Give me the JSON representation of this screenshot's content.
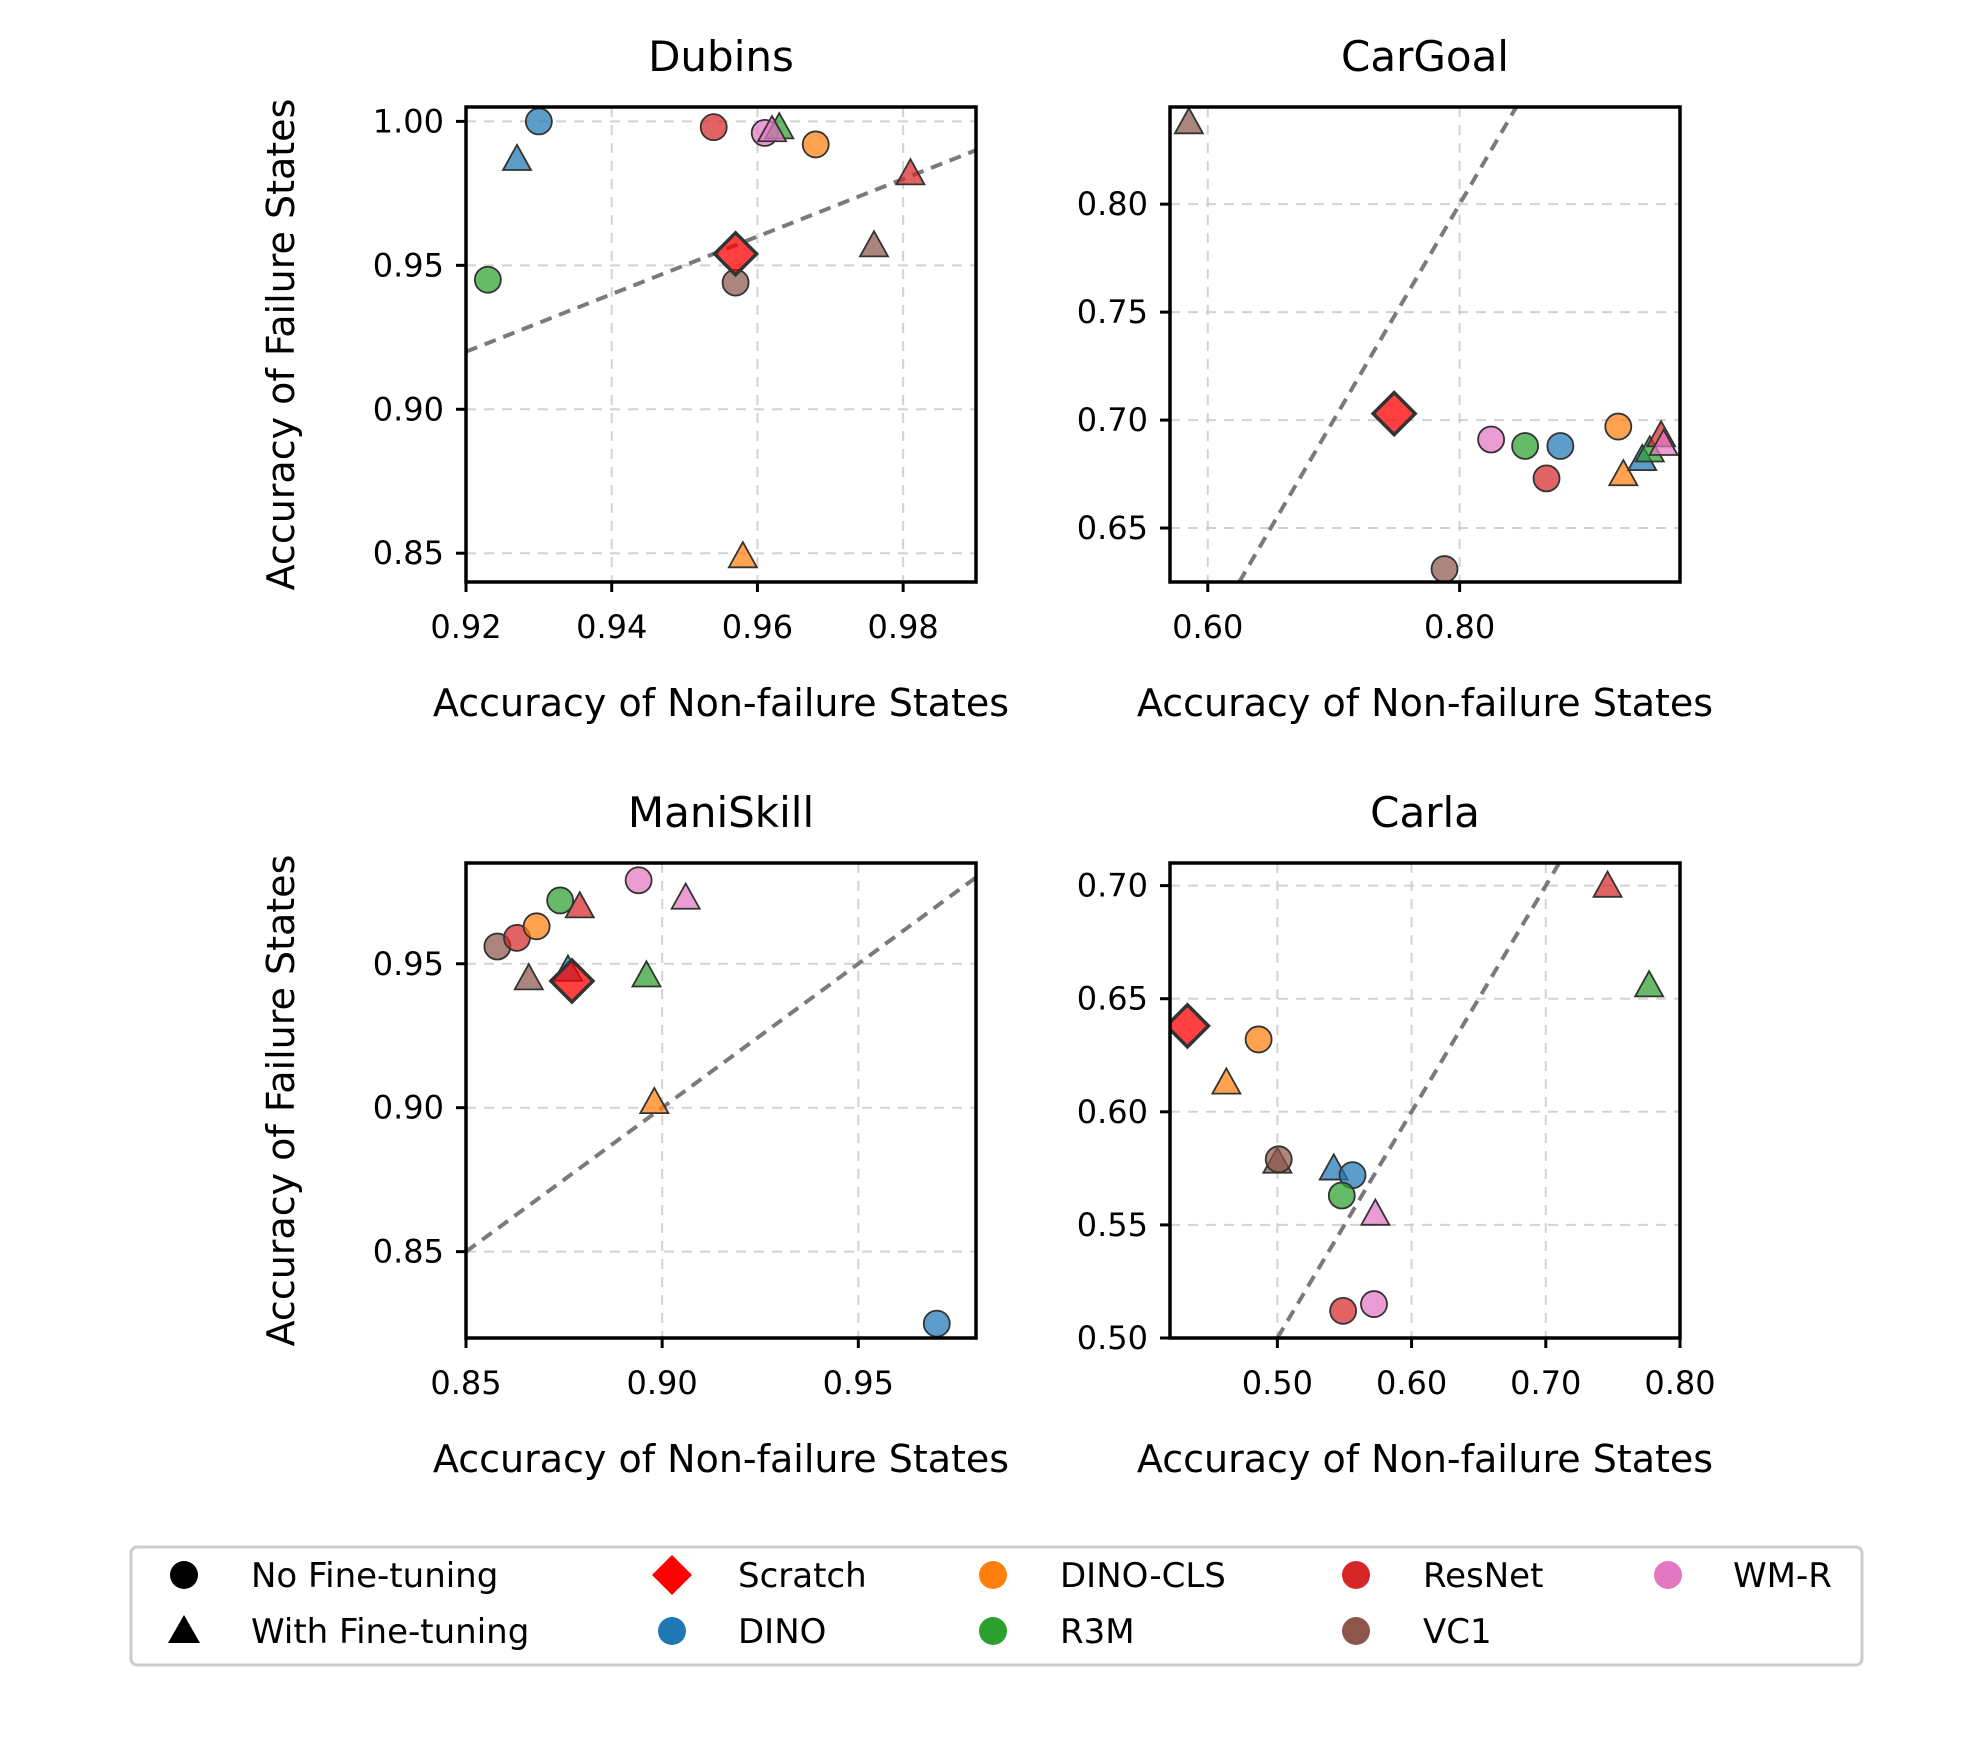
{
  "chart_data": [
    {
      "type": "scatter",
      "title": "Dubins",
      "xlabel": "Accuracy of Non-failure States",
      "ylabel": "Accuracy of Failure States",
      "xlim": [
        0.92,
        0.99
      ],
      "ylim": [
        0.84,
        1.005
      ],
      "xticks": [
        0.92,
        0.94,
        0.96,
        0.98
      ],
      "xtick_labels": [
        "0.92",
        "0.94",
        "0.96",
        "0.98"
      ],
      "yticks": [
        0.85,
        0.9,
        0.95,
        1.0
      ],
      "ytick_labels": [
        "0.85",
        "0.90",
        "0.95",
        "1.00"
      ],
      "reference_line": [
        [
          0.92,
          0.92
        ],
        [
          0.99,
          0.99
        ]
      ],
      "points": [
        {
          "model": "DINO",
          "finetuned": false,
          "x": 0.93,
          "y": 1.0
        },
        {
          "model": "DINO",
          "finetuned": true,
          "x": 0.927,
          "y": 0.987
        },
        {
          "model": "R3M",
          "finetuned": false,
          "x": 0.923,
          "y": 0.945
        },
        {
          "model": "ResNet",
          "finetuned": false,
          "x": 0.954,
          "y": 0.998
        },
        {
          "model": "WM-R",
          "finetuned": false,
          "x": 0.961,
          "y": 0.996
        },
        {
          "model": "R3M",
          "finetuned": true,
          "x": 0.963,
          "y": 0.998
        },
        {
          "model": "WM-R",
          "finetuned": true,
          "x": 0.962,
          "y": 0.997
        },
        {
          "model": "DINO-CLS",
          "finetuned": false,
          "x": 0.968,
          "y": 0.992
        },
        {
          "model": "ResNet",
          "finetuned": true,
          "x": 0.981,
          "y": 0.982
        },
        {
          "model": "VC1",
          "finetuned": true,
          "x": 0.976,
          "y": 0.957
        },
        {
          "model": "VC1",
          "finetuned": false,
          "x": 0.957,
          "y": 0.944
        },
        {
          "model": "DINO-CLS",
          "finetuned": true,
          "x": 0.958,
          "y": 0.849
        },
        {
          "model": "Scratch",
          "finetuned": null,
          "x": 0.957,
          "y": 0.954
        }
      ]
    },
    {
      "type": "scatter",
      "title": "CarGoal",
      "xlabel": "Accuracy of Non-failure States",
      "ylabel": "",
      "xlim": [
        0.57,
        0.975
      ],
      "ylim": [
        0.625,
        0.845
      ],
      "xticks": [
        0.6,
        0.8
      ],
      "xtick_labels": [
        "0.60",
        "0.80"
      ],
      "yticks": [
        0.65,
        0.7,
        0.75,
        0.8
      ],
      "ytick_labels": [
        "0.65",
        "0.70",
        "0.75",
        "0.80"
      ],
      "reference_line": [
        [
          0.625,
          0.625
        ],
        [
          0.845,
          0.845
        ]
      ],
      "points": [
        {
          "model": "VC1",
          "finetuned": true,
          "x": 0.585,
          "y": 0.838
        },
        {
          "model": "Scratch",
          "finetuned": null,
          "x": 0.748,
          "y": 0.703
        },
        {
          "model": "WM-R",
          "finetuned": false,
          "x": 0.825,
          "y": 0.691
        },
        {
          "model": "R3M",
          "finetuned": false,
          "x": 0.852,
          "y": 0.688
        },
        {
          "model": "DINO",
          "finetuned": false,
          "x": 0.88,
          "y": 0.688
        },
        {
          "model": "ResNet",
          "finetuned": false,
          "x": 0.869,
          "y": 0.673
        },
        {
          "model": "DINO-CLS",
          "finetuned": false,
          "x": 0.926,
          "y": 0.697
        },
        {
          "model": "DINO-CLS",
          "finetuned": true,
          "x": 0.93,
          "y": 0.675
        },
        {
          "model": "DINO",
          "finetuned": true,
          "x": 0.945,
          "y": 0.682
        },
        {
          "model": "R3M",
          "finetuned": true,
          "x": 0.951,
          "y": 0.686
        },
        {
          "model": "ResNet",
          "finetuned": true,
          "x": 0.96,
          "y": 0.693
        },
        {
          "model": "WM-R",
          "finetuned": true,
          "x": 0.962,
          "y": 0.689
        },
        {
          "model": "VC1",
          "finetuned": false,
          "x": 0.788,
          "y": 0.631
        }
      ]
    },
    {
      "type": "scatter",
      "title": "ManiSkill",
      "xlabel": "Accuracy of Non-failure States",
      "ylabel": "Accuracy of Failure States",
      "xlim": [
        0.85,
        0.98
      ],
      "ylim": [
        0.82,
        0.985
      ],
      "xticks": [
        0.85,
        0.9,
        0.95
      ],
      "xtick_labels": [
        "0.85",
        "0.90",
        "0.95"
      ],
      "yticks": [
        0.85,
        0.9,
        0.95
      ],
      "ytick_labels": [
        "0.85",
        "0.90",
        "0.95"
      ],
      "reference_line": [
        [
          0.85,
          0.85
        ],
        [
          0.98,
          0.98
        ]
      ],
      "points": [
        {
          "model": "VC1",
          "finetuned": false,
          "x": 0.858,
          "y": 0.956
        },
        {
          "model": "ResNet",
          "finetuned": false,
          "x": 0.863,
          "y": 0.959
        },
        {
          "model": "DINO-CLS",
          "finetuned": false,
          "x": 0.868,
          "y": 0.963
        },
        {
          "model": "R3M",
          "finetuned": false,
          "x": 0.874,
          "y": 0.972
        },
        {
          "model": "ResNet",
          "finetuned": true,
          "x": 0.879,
          "y": 0.97
        },
        {
          "model": "WM-R",
          "finetuned": false,
          "x": 0.894,
          "y": 0.979
        },
        {
          "model": "WM-R",
          "finetuned": true,
          "x": 0.906,
          "y": 0.973
        },
        {
          "model": "VC1",
          "finetuned": true,
          "x": 0.866,
          "y": 0.945
        },
        {
          "model": "DINO",
          "finetuned": true,
          "x": 0.876,
          "y": 0.948
        },
        {
          "model": "R3M",
          "finetuned": true,
          "x": 0.896,
          "y": 0.946
        },
        {
          "model": "DINO-CLS",
          "finetuned": true,
          "x": 0.898,
          "y": 0.902
        },
        {
          "model": "DINO",
          "finetuned": false,
          "x": 0.97,
          "y": 0.825
        },
        {
          "model": "Scratch",
          "finetuned": null,
          "x": 0.877,
          "y": 0.944
        }
      ]
    },
    {
      "type": "scatter",
      "title": "Carla",
      "xlabel": "Accuracy of Non-failure States",
      "ylabel": "",
      "xlim": [
        0.42,
        0.8
      ],
      "ylim": [
        0.5,
        0.71
      ],
      "xticks": [
        0.5,
        0.6,
        0.7,
        0.8
      ],
      "xtick_labels": [
        "0.50",
        "0.60",
        "0.70",
        "0.80"
      ],
      "yticks": [
        0.5,
        0.55,
        0.6,
        0.65,
        0.7
      ],
      "ytick_labels": [
        "0.50",
        "0.55",
        "0.60",
        "0.65",
        "0.70"
      ],
      "reference_line": [
        [
          0.5,
          0.5
        ],
        [
          0.71,
          0.71
        ]
      ],
      "points": [
        {
          "model": "Scratch",
          "finetuned": null,
          "x": 0.433,
          "y": 0.638
        },
        {
          "model": "DINO-CLS",
          "finetuned": false,
          "x": 0.486,
          "y": 0.632
        },
        {
          "model": "DINO-CLS",
          "finetuned": true,
          "x": 0.462,
          "y": 0.613
        },
        {
          "model": "VC1",
          "finetuned": true,
          "x": 0.5,
          "y": 0.578
        },
        {
          "model": "VC1",
          "finetuned": false,
          "x": 0.501,
          "y": 0.579
        },
        {
          "model": "DINO",
          "finetuned": true,
          "x": 0.542,
          "y": 0.575
        },
        {
          "model": "DINO",
          "finetuned": false,
          "x": 0.556,
          "y": 0.572
        },
        {
          "model": "R3M",
          "finetuned": false,
          "x": 0.548,
          "y": 0.563
        },
        {
          "model": "WM-R",
          "finetuned": true,
          "x": 0.573,
          "y": 0.555
        },
        {
          "model": "ResNet",
          "finetuned": false,
          "x": 0.549,
          "y": 0.512
        },
        {
          "model": "WM-R",
          "finetuned": false,
          "x": 0.572,
          "y": 0.515
        },
        {
          "model": "ResNet",
          "finetuned": true,
          "x": 0.746,
          "y": 0.7
        },
        {
          "model": "R3M",
          "finetuned": true,
          "x": 0.777,
          "y": 0.656
        }
      ]
    }
  ],
  "model_colors": {
    "Scratch": "#ff0000",
    "DINO": "#1f77b4",
    "DINO-CLS": "#ff7f0e",
    "R3M": "#2ca02c",
    "ResNet": "#d62728",
    "VC1": "#8c564b",
    "WM-R": "#e377c2"
  },
  "legend": {
    "items": [
      {
        "label": "No Fine-tuning",
        "marker": "circle",
        "color": "#000000"
      },
      {
        "label": "With Fine-tuning",
        "marker": "triangle",
        "color": "#000000"
      },
      {
        "label": "Scratch",
        "marker": "diamond",
        "color": "#ff0000"
      },
      {
        "label": "DINO",
        "marker": "circle",
        "color": "#1f77b4"
      },
      {
        "label": "DINO-CLS",
        "marker": "circle",
        "color": "#ff7f0e"
      },
      {
        "label": "R3M",
        "marker": "circle",
        "color": "#2ca02c"
      },
      {
        "label": "ResNet",
        "marker": "circle",
        "color": "#d62728"
      },
      {
        "label": "VC1",
        "marker": "circle",
        "color": "#8c564b"
      },
      {
        "label": "WM-R",
        "marker": "circle",
        "color": "#e377c2"
      }
    ]
  }
}
